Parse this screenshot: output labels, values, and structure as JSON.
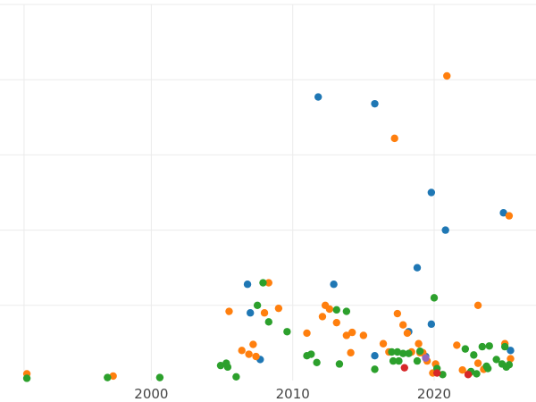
{
  "chart_data": {
    "type": "scatter",
    "title": "",
    "xlabel": "",
    "ylabel": "",
    "xlim": [
      1989.3,
      2027.2
    ],
    "ylim": [
      0,
      50
    ],
    "x_ticks": [
      2000,
      2010,
      2020
    ],
    "y_gridlines": [
      10,
      20,
      30,
      40,
      50
    ],
    "grid": true,
    "legend": "none",
    "series": [
      {
        "color": "#1f77b4",
        "points": [
          [
            2006.8,
            12.8
          ],
          [
            2007.0,
            9.0
          ],
          [
            2007.7,
            2.8
          ],
          [
            2011.8,
            37.7
          ],
          [
            2012.9,
            12.8
          ],
          [
            2015.8,
            36.8
          ],
          [
            2015.8,
            3.3
          ],
          [
            2018.2,
            6.5
          ],
          [
            2018.8,
            15.0
          ],
          [
            2019.8,
            7.5
          ],
          [
            2019.8,
            25.0
          ],
          [
            2020.8,
            20.0
          ],
          [
            2024.9,
            22.3
          ],
          [
            2025.4,
            4.0
          ],
          [
            2019.4,
            3.2
          ]
        ]
      },
      {
        "color": "#ff7f0e",
        "points": [
          [
            1991.2,
            0.9
          ],
          [
            1997.3,
            0.6
          ],
          [
            2005.5,
            9.2
          ],
          [
            2006.4,
            4.0
          ],
          [
            2006.9,
            3.5
          ],
          [
            2007.2,
            4.8
          ],
          [
            2007.4,
            3.2
          ],
          [
            2008.0,
            9.0
          ],
          [
            2008.3,
            13.0
          ],
          [
            2009.0,
            9.6
          ],
          [
            2011.0,
            6.3
          ],
          [
            2012.1,
            8.5
          ],
          [
            2012.3,
            10.0
          ],
          [
            2012.6,
            9.5
          ],
          [
            2013.1,
            7.7
          ],
          [
            2013.8,
            6.0
          ],
          [
            2014.1,
            3.7
          ],
          [
            2014.2,
            6.4
          ],
          [
            2015.0,
            6.0
          ],
          [
            2016.4,
            4.9
          ],
          [
            2016.8,
            3.8
          ],
          [
            2017.2,
            32.2
          ],
          [
            2017.4,
            8.9
          ],
          [
            2017.8,
            7.4
          ],
          [
            2018.1,
            6.3
          ],
          [
            2018.4,
            3.8
          ],
          [
            2018.9,
            4.9
          ],
          [
            2019.0,
            3.7
          ],
          [
            2019.2,
            3.7
          ],
          [
            2019.5,
            2.6
          ],
          [
            2019.9,
            1.0
          ],
          [
            2020.1,
            2.2
          ],
          [
            2020.9,
            40.5
          ],
          [
            2021.6,
            4.7
          ],
          [
            2022.0,
            1.4
          ],
          [
            2022.5,
            1.0
          ],
          [
            2023.1,
            10.0
          ],
          [
            2023.1,
            2.3
          ],
          [
            2025.0,
            4.9
          ],
          [
            2025.3,
            21.9
          ],
          [
            2025.4,
            2.9
          ],
          [
            2023.5,
            1.5
          ]
        ]
      },
      {
        "color": "#2ca02c",
        "points": [
          [
            1991.2,
            0.3
          ],
          [
            1996.9,
            0.4
          ],
          [
            2000.6,
            0.4
          ],
          [
            2004.9,
            2.0
          ],
          [
            2005.3,
            2.3
          ],
          [
            2005.4,
            1.8
          ],
          [
            2006.0,
            0.5
          ],
          [
            2007.5,
            10.0
          ],
          [
            2007.9,
            13.0
          ],
          [
            2008.3,
            7.8
          ],
          [
            2009.6,
            6.5
          ],
          [
            2011.0,
            3.3
          ],
          [
            2011.3,
            3.5
          ],
          [
            2011.7,
            2.4
          ],
          [
            2013.1,
            9.4
          ],
          [
            2013.3,
            2.2
          ],
          [
            2013.8,
            9.2
          ],
          [
            2015.8,
            1.5
          ],
          [
            2017.0,
            3.8
          ],
          [
            2017.1,
            2.6
          ],
          [
            2017.4,
            3.8
          ],
          [
            2017.5,
            2.6
          ],
          [
            2017.8,
            3.6
          ],
          [
            2018.2,
            3.6
          ],
          [
            2018.8,
            2.6
          ],
          [
            2019.0,
            3.9
          ],
          [
            2020.0,
            11.0
          ],
          [
            2020.2,
            1.6
          ],
          [
            2020.6,
            0.8
          ],
          [
            2022.2,
            4.2
          ],
          [
            2022.6,
            1.2
          ],
          [
            2022.8,
            3.4
          ],
          [
            2023.0,
            0.9
          ],
          [
            2023.4,
            4.5
          ],
          [
            2023.7,
            1.9
          ],
          [
            2023.8,
            1.6
          ],
          [
            2023.9,
            4.6
          ],
          [
            2024.4,
            2.8
          ],
          [
            2024.8,
            2.2
          ],
          [
            2025.1,
            1.8
          ],
          [
            2025.0,
            4.5
          ],
          [
            2025.3,
            2.1
          ]
        ]
      },
      {
        "color": "#d62728",
        "points": [
          [
            2017.9,
            1.7
          ],
          [
            2020.2,
            1.0
          ],
          [
            2022.4,
            0.8
          ]
        ]
      },
      {
        "color": "#9467bd",
        "points": [
          [
            2019.4,
            3.0
          ]
        ]
      }
    ]
  }
}
